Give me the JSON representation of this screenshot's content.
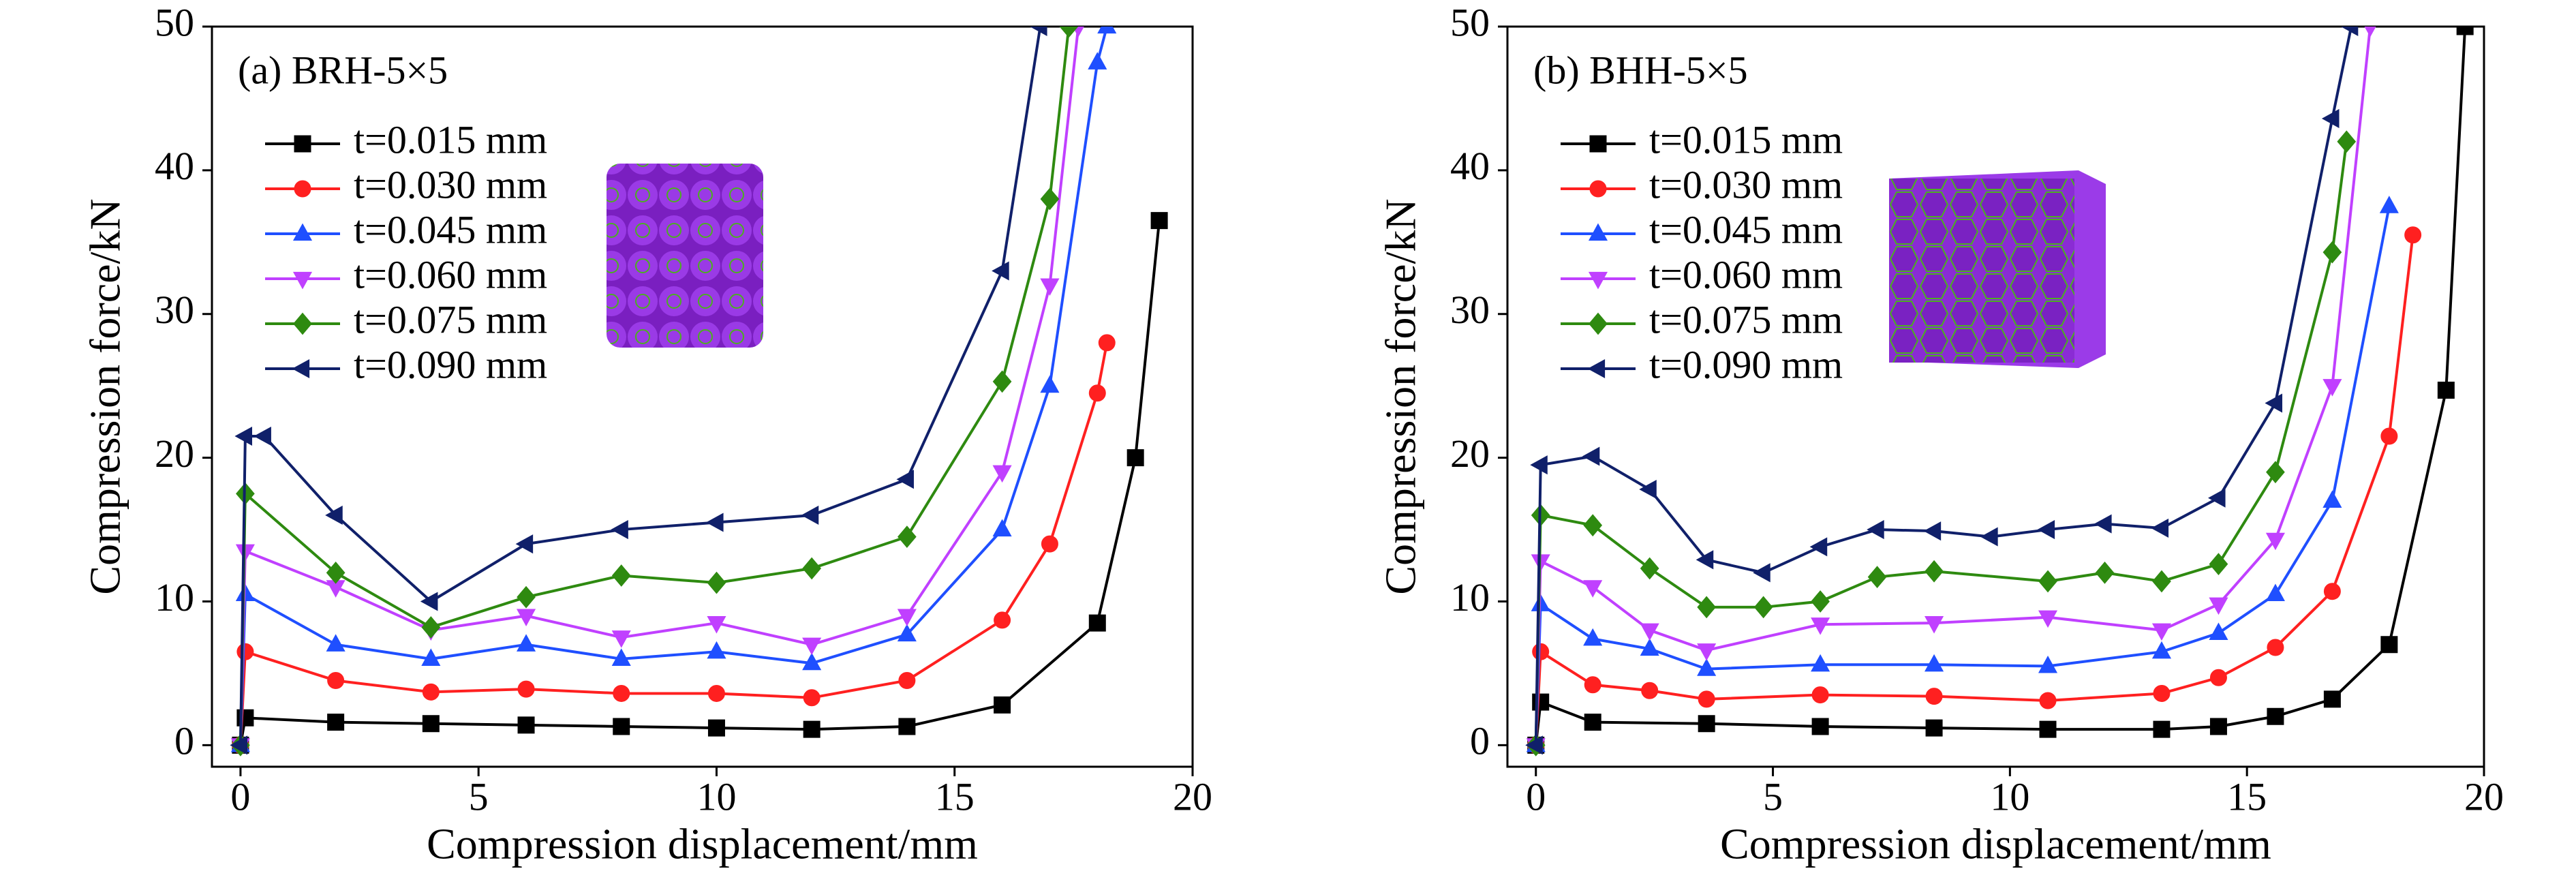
{
  "chart_data": [
    {
      "type": "line",
      "annotation": "(a) BRH-5×5",
      "x_label": "Compression displacement/mm",
      "y_label": "Compression force/kN",
      "xlim": [
        -0.6,
        20
      ],
      "ylim": [
        -1.5,
        50
      ],
      "xticks": [
        0,
        5,
        10,
        15,
        20
      ],
      "yticks": [
        0,
        10,
        20,
        30,
        40,
        50
      ],
      "legend": "upper left",
      "series": [
        {
          "name": "t=0.015 mm",
          "color": "#000000",
          "marker": "square",
          "x": [
            0,
            0.1,
            2,
            4,
            6,
            8,
            10,
            12,
            14,
            16,
            18,
            18.8,
            19.3
          ],
          "values": [
            0,
            1.9,
            1.6,
            1.5,
            1.4,
            1.3,
            1.2,
            1.1,
            1.3,
            2.8,
            8.5,
            20,
            36.5
          ]
        },
        {
          "name": "t=0.030 mm",
          "color": "#ff2020",
          "marker": "circle",
          "x": [
            0,
            0.1,
            2,
            4,
            6,
            8,
            10,
            12,
            14,
            16,
            17,
            18,
            18.2
          ],
          "values": [
            0,
            6.5,
            4.5,
            3.7,
            3.9,
            3.6,
            3.6,
            3.3,
            4.5,
            8.7,
            14,
            24.5,
            28
          ]
        },
        {
          "name": "t=0.045 mm",
          "color": "#1f4fff",
          "marker": "triangle-up",
          "x": [
            0,
            0.1,
            2,
            4,
            6,
            8,
            10,
            12,
            14,
            16,
            17,
            18,
            18.2
          ],
          "values": [
            0,
            10.5,
            7,
            6,
            7,
            6,
            6.5,
            5.7,
            7.7,
            15,
            25,
            47.5,
            50
          ]
        },
        {
          "name": "t=0.060 mm",
          "color": "#c040ff",
          "marker": "triangle-down",
          "x": [
            0,
            0.1,
            2,
            4,
            6,
            8,
            10,
            12,
            14,
            16,
            17,
            17.6
          ],
          "values": [
            0,
            13.5,
            11,
            8,
            9,
            7.5,
            8.5,
            7,
            9,
            19,
            32,
            50
          ]
        },
        {
          "name": "t=0.075 mm",
          "color": "#2e8a10",
          "marker": "diamond",
          "x": [
            0,
            0.1,
            2,
            4,
            6,
            8,
            10,
            12,
            14,
            16,
            17,
            17.4
          ],
          "values": [
            0,
            17.5,
            12,
            8.2,
            10.3,
            11.8,
            11.3,
            12.3,
            14.5,
            25.3,
            38,
            50
          ]
        },
        {
          "name": "t=0.090 mm",
          "color": "#10206a",
          "marker": "triangle-left",
          "x": [
            0,
            0.1,
            0.5,
            2,
            4,
            6,
            8,
            10,
            12,
            14,
            16,
            16.8
          ],
          "values": [
            0,
            21.5,
            21.5,
            16,
            10,
            14,
            15,
            15.5,
            16,
            18.5,
            33,
            50
          ]
        }
      ]
    },
    {
      "type": "line",
      "annotation": "(b) BHH-5×5",
      "x_label": "Compression displacement/mm",
      "y_label": "Compression force/kN",
      "xlim": [
        -0.6,
        20
      ],
      "ylim": [
        -1.5,
        50
      ],
      "xticks": [
        0,
        5,
        10,
        15,
        20
      ],
      "yticks": [
        0,
        10,
        20,
        30,
        40,
        50
      ],
      "legend": "upper left",
      "series": [
        {
          "name": "t=0.015 mm",
          "color": "#000000",
          "marker": "square",
          "x": [
            0,
            0.1,
            1.2,
            3.6,
            6,
            8.4,
            10.8,
            13.2,
            14.4,
            15.6,
            16.8,
            18,
            19.2,
            19.6
          ],
          "values": [
            0,
            3,
            1.6,
            1.5,
            1.3,
            1.2,
            1.1,
            1.1,
            1.3,
            2,
            3.2,
            7,
            24.7,
            50
          ]
        },
        {
          "name": "t=0.030 mm",
          "color": "#ff2020",
          "marker": "circle",
          "x": [
            0,
            0.1,
            1.2,
            2.4,
            3.6,
            6,
            8.4,
            10.8,
            13.2,
            14.4,
            15.6,
            16.8,
            18,
            18.5
          ],
          "values": [
            0,
            6.5,
            4.2,
            3.8,
            3.2,
            3.5,
            3.4,
            3.1,
            3.6,
            4.7,
            6.8,
            10.7,
            21.5,
            35.5
          ]
        },
        {
          "name": "t=0.045 mm",
          "color": "#1f4fff",
          "marker": "triangle-up",
          "x": [
            0,
            0.1,
            1.2,
            2.4,
            3.6,
            6,
            8.4,
            10.8,
            13.2,
            14.4,
            15.6,
            16.8,
            18
          ],
          "values": [
            0,
            9.8,
            7.4,
            6.7,
            5.3,
            5.6,
            5.6,
            5.5,
            6.5,
            7.8,
            10.5,
            17,
            37.5
          ]
        },
        {
          "name": "t=0.060 mm",
          "color": "#c040ff",
          "marker": "triangle-down",
          "x": [
            0,
            0.1,
            1.2,
            2.4,
            3.6,
            6,
            8.4,
            10.8,
            13.2,
            14.4,
            15.6,
            16.8,
            17.6
          ],
          "values": [
            0,
            12.8,
            11,
            8,
            6.6,
            8.4,
            8.5,
            8.9,
            8,
            9.8,
            14.3,
            25,
            50
          ]
        },
        {
          "name": "t=0.075 mm",
          "color": "#2e8a10",
          "marker": "diamond",
          "x": [
            0,
            0.1,
            1.2,
            2.4,
            3.6,
            4.8,
            6,
            7.2,
            8.4,
            10.8,
            12,
            13.2,
            14.4,
            15.6,
            16.8,
            17.1
          ],
          "values": [
            0,
            16,
            15.3,
            12.3,
            9.6,
            9.6,
            10,
            11.7,
            12.1,
            11.4,
            12,
            11.4,
            12.6,
            19,
            34.3,
            42
          ]
        },
        {
          "name": "t=0.090 mm",
          "color": "#10206a",
          "marker": "triangle-left",
          "x": [
            0,
            0.1,
            1.2,
            2.4,
            3.6,
            4.8,
            6,
            7.2,
            8.4,
            9.6,
            10.8,
            12,
            13.2,
            14.4,
            15.6,
            16.8,
            17.2
          ],
          "values": [
            0,
            19.5,
            20.1,
            17.8,
            12.9,
            12,
            13.8,
            15,
            14.9,
            14.5,
            15,
            15.4,
            15.1,
            17.2,
            23.8,
            43.6,
            50
          ]
        }
      ]
    }
  ]
}
